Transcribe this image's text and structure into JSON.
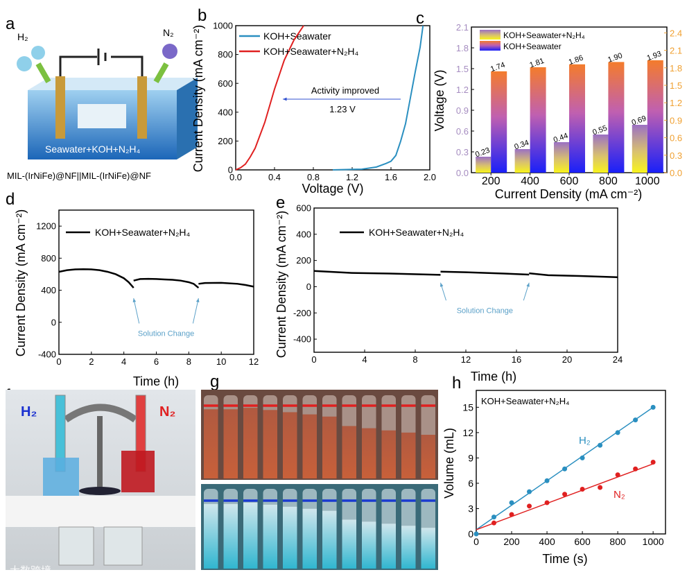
{
  "panel_labels": {
    "a": "a",
    "b": "b",
    "c": "c",
    "d": "d",
    "e": "e",
    "f": "f",
    "g": "g",
    "h": "h"
  },
  "panel_a": {
    "h2_label": "H₂",
    "n2_label": "N₂",
    "electrolyte_label": "Seawater+KOH+N₂H₄",
    "caption": "MIL-(IrNiFe)@NF||MIL-(IrNiFe)@NF"
  },
  "panel_f": {
    "h2_label": "H₂",
    "n2_label": "N₂"
  },
  "watermark": "大数跨境",
  "colors": {
    "blue_line": "#2a8fc0",
    "red_line": "#e02020",
    "purple_bar": "#9b70c4",
    "orange_bar": "#f47c2c",
    "annotation": "#5aa0c8",
    "right_axis": "#f0a030"
  },
  "chart_data": [
    {
      "panel": "b",
      "type": "line",
      "xlabel": "Voltage (V)",
      "ylabel": "Current Density (mA cm⁻²)",
      "xlim": [
        0,
        2.0
      ],
      "ylim": [
        0,
        1000
      ],
      "xticks": [
        "0.0",
        "0.4",
        "0.8",
        "1.2",
        "1.6",
        "2.0"
      ],
      "yticks": [
        "0",
        "200",
        "400",
        "600",
        "800",
        "1000"
      ],
      "legend": "top-left",
      "series": [
        {
          "name": "KOH+Seawater",
          "color": "#2a8fc0",
          "x": [
            1.0,
            1.3,
            1.45,
            1.55,
            1.6,
            1.65,
            1.7,
            1.75,
            1.8,
            1.85,
            1.9,
            1.93
          ],
          "y": [
            0,
            5,
            20,
            45,
            60,
            100,
            200,
            320,
            500,
            680,
            850,
            1000
          ]
        },
        {
          "name": "KOH+Seawater+N₂H₄",
          "color": "#e02020",
          "x": [
            0,
            0.05,
            0.1,
            0.15,
            0.2,
            0.3,
            0.4,
            0.5,
            0.6,
            0.7
          ],
          "y": [
            0,
            15,
            40,
            90,
            150,
            330,
            560,
            760,
            900,
            1000
          ]
        }
      ],
      "annotations": {
        "text1": "Activity improved",
        "text2": "1.23 V"
      }
    },
    {
      "panel": "c",
      "type": "bar",
      "xlabel": "Current Density (mA cm⁻²)",
      "ylabel": "Voltage (V)",
      "categories": [
        "200",
        "400",
        "600",
        "800",
        "1000"
      ],
      "ylim_left": [
        0,
        2.1
      ],
      "ylim_right": [
        0,
        2.5
      ],
      "yticks_left": [
        "0.0",
        "0.3",
        "0.6",
        "0.9",
        "1.2",
        "1.5",
        "1.8",
        "2.1"
      ],
      "yticks_right": [
        "0.0",
        "0.3",
        "0.6",
        "0.9",
        "1.2",
        "1.5",
        "1.8",
        "2.1",
        "2.4"
      ],
      "legend": "top-left",
      "series": [
        {
          "name": "KOH+Seawater+N₂H₄",
          "axis": "left",
          "values": [
            0.23,
            0.34,
            0.44,
            0.55,
            0.69
          ],
          "labels": [
            "0.23",
            "0.34",
            "0.44",
            "0.55",
            "0.69"
          ]
        },
        {
          "name": "KOH+Seawater",
          "axis": "right",
          "values": [
            1.74,
            1.81,
            1.86,
            1.9,
            1.93
          ],
          "labels": [
            "1.74",
            "1.81",
            "1.86",
            "1.90",
            "1.93"
          ]
        }
      ]
    },
    {
      "panel": "d",
      "type": "line",
      "xlabel": "Time (h)",
      "ylabel": "Current Density (mA cm⁻²)",
      "xlim": [
        0,
        12
      ],
      "ylim": [
        -400,
        1400
      ],
      "xticks": [
        "0",
        "2",
        "4",
        "6",
        "8",
        "10",
        "12"
      ],
      "yticks": [
        "-400",
        "0",
        "400",
        "800",
        "1200"
      ],
      "legend": "top-left",
      "series": [
        {
          "name": "KOH+Seawater+N₂H₄",
          "segments": [
            {
              "x": [
                0,
                0.5,
                1,
                1.5,
                2,
                2.5,
                3,
                3.5,
                4,
                4.3,
                4.6
              ],
              "y": [
                630,
                650,
                660,
                662,
                660,
                650,
                630,
                600,
                550,
                500,
                430
              ]
            },
            {
              "x": [
                4.6,
                5,
                5.5,
                6,
                6.5,
                7,
                7.5,
                8,
                8.3,
                8.6
              ],
              "y": [
                520,
                540,
                542,
                540,
                535,
                530,
                520,
                500,
                480,
                430
              ]
            },
            {
              "x": [
                8.6,
                9,
                10,
                11,
                11.5,
                12
              ],
              "y": [
                480,
                490,
                492,
                480,
                465,
                445
              ]
            }
          ]
        }
      ],
      "annotation": "Solution Change"
    },
    {
      "panel": "e",
      "type": "line",
      "xlabel": "Time (h)",
      "ylabel": "Current Density (mA cm⁻²)",
      "xlim": [
        0,
        24
      ],
      "ylim": [
        -500,
        600
      ],
      "xticks": [
        "0",
        "4",
        "8",
        "12",
        "16",
        "20",
        "24"
      ],
      "yticks": [
        "-400",
        "-200",
        "0",
        "200",
        "400",
        "600"
      ],
      "legend": "top-left",
      "series": [
        {
          "name": "KOH+Seawater+N₂H₄",
          "segments": [
            {
              "x": [
                0,
                3,
                6,
                10
              ],
              "y": [
                120,
                105,
                100,
                90
              ]
            },
            {
              "x": [
                10,
                12,
                15,
                17
              ],
              "y": [
                115,
                110,
                100,
                92
              ]
            },
            {
              "x": [
                17,
                18.5,
                21,
                24
              ],
              "y": [
                102,
                88,
                82,
                72
              ]
            }
          ]
        }
      ],
      "annotation": "Solution Change"
    },
    {
      "panel": "h",
      "type": "scatter",
      "xlabel": "Time (s)",
      "ylabel": "Volume (mL)",
      "xlim": [
        0,
        1070
      ],
      "ylim": [
        0,
        17
      ],
      "xticks": [
        "0",
        "200",
        "400",
        "600",
        "800",
        "1000"
      ],
      "yticks": [
        "0",
        "3",
        "6",
        "9",
        "12",
        "15"
      ],
      "title": "KOH+Seawater+N₂H₄",
      "series": [
        {
          "name": "H₂",
          "color": "#2a8fc0",
          "x": [
            0,
            100,
            200,
            300,
            400,
            500,
            600,
            700,
            800,
            900,
            1000
          ],
          "y": [
            0,
            2.0,
            3.7,
            5.0,
            6.3,
            7.7,
            9.0,
            10.5,
            12.0,
            13.5,
            15.0
          ],
          "fit": [
            [
              0,
              0.5
            ],
            [
              1000,
              15
            ]
          ]
        },
        {
          "name": "N₂",
          "color": "#e02020",
          "x": [
            100,
            200,
            300,
            400,
            500,
            600,
            700,
            800,
            900,
            1000
          ],
          "y": [
            1.3,
            2.3,
            3.3,
            3.7,
            4.7,
            5.3,
            5.5,
            7.0,
            7.7,
            8.5
          ],
          "fit": [
            [
              0,
              0.5
            ],
            [
              1000,
              8.3
            ]
          ]
        }
      ]
    }
  ]
}
